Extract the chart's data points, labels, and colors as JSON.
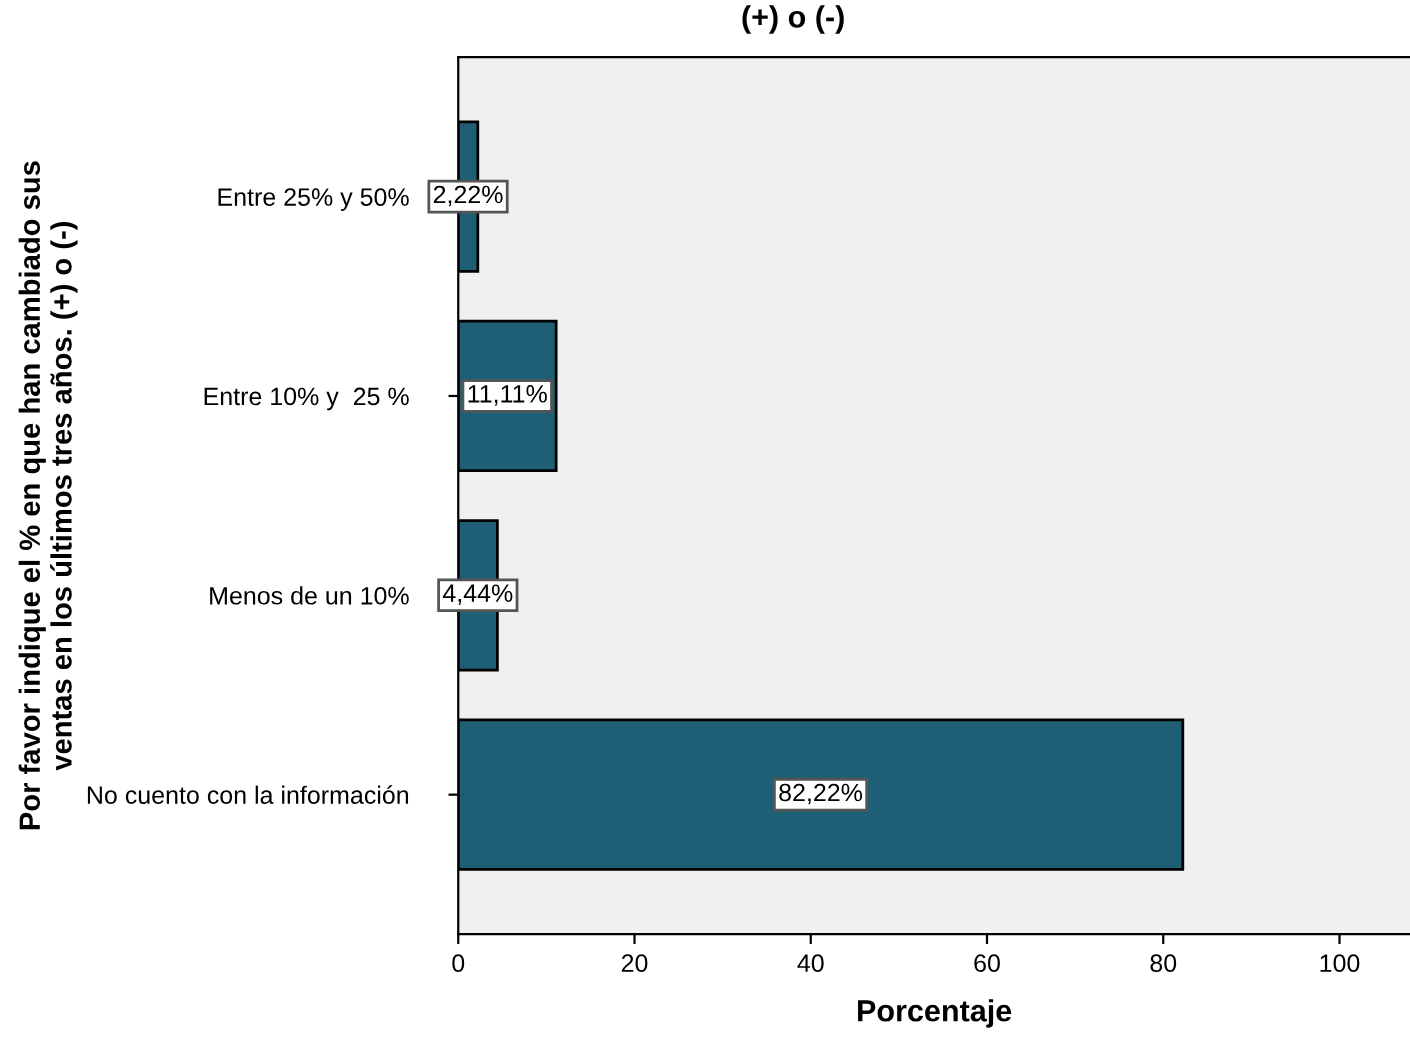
{
  "chart_data": {
    "type": "bar",
    "orientation": "horizontal",
    "title": "(+) o (-)",
    "xlabel": "Porcentaje",
    "ylabel": "Por favor indique el % en que han cambiado sus\nventas en los últimos tres años. (+) o (-)",
    "categories": [
      "Entre 25% y 50%",
      "Entre 10% y  25 %",
      "Menos de un 10%",
      "No cuento con la información"
    ],
    "values": [
      2.22,
      11.11,
      4.44,
      82.22
    ],
    "value_labels": [
      "2,22%",
      "11,11%",
      "4,44%",
      "82,22%"
    ],
    "color": "#1f5f75",
    "xlim": [
      0,
      108
    ],
    "xticks": [
      0,
      20,
      40,
      60,
      80,
      100
    ],
    "grid": false,
    "legend": false
  }
}
